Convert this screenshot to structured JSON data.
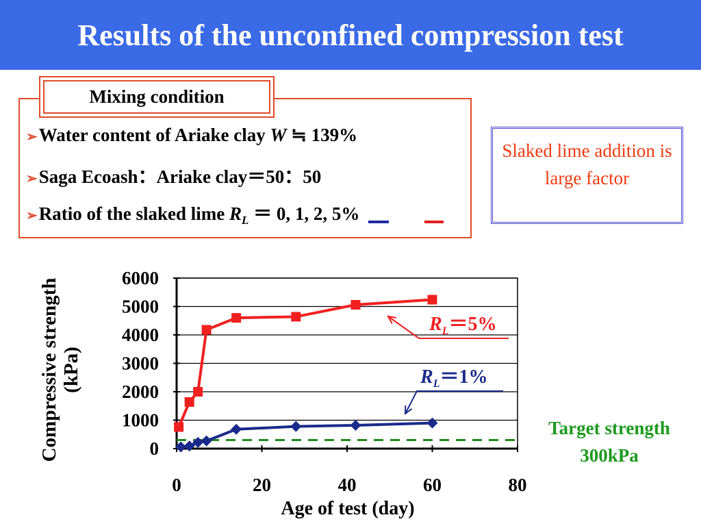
{
  "slide": {
    "title": "Results of the unconfined compression test",
    "mixing_label": "Mixing condition",
    "bullets": {
      "b1_text": "Water content of Ariake clay ",
      "b1_var": "W",
      "b1_value": " ≒ 139%",
      "b2_text": "Saga Ecoash：Ariake clay＝50：50",
      "b3_text": "Ratio of the slaked lime ",
      "b3_var": "R",
      "b3_sub": "L",
      "b3_values": " ＝ 0,  1,  2,  5%"
    },
    "side_note": "Slaked lime addition is large factor",
    "target_note_line1": "Target strength",
    "target_note_line2": "300kPa"
  },
  "colors": {
    "title_bg": "#3b6ae6",
    "series_rl5": "#f02020",
    "series_rl1": "#1a2a8a",
    "target_line": "#1d8a1d",
    "accent_red": "#e04a2a"
  },
  "chart_data": {
    "type": "line",
    "xlabel": "Age of test (day)",
    "ylabel": "Compressive strength (kPa)",
    "xlim": [
      0,
      80
    ],
    "ylim": [
      0,
      6000
    ],
    "x_ticks": [
      "0",
      "20",
      "40",
      "60",
      "80"
    ],
    "y_ticks": [
      "0",
      "1000",
      "2000",
      "3000",
      "4000",
      "5000",
      "6000"
    ],
    "grid": "horizontal",
    "series": [
      {
        "name_var": "R",
        "name_sub": "L",
        "name_value": "＝5%",
        "marker": "square",
        "x": [
          0.5,
          3,
          5,
          7,
          14,
          28,
          42,
          60
        ],
        "y": [
          760,
          1640,
          2000,
          4180,
          4600,
          4640,
          5060,
          5240
        ]
      },
      {
        "name_var": "R",
        "name_sub": "L",
        "name_value": "＝1%",
        "marker": "diamond",
        "x": [
          1,
          3,
          5,
          7,
          14,
          28,
          42,
          60
        ],
        "y": [
          60,
          90,
          220,
          270,
          680,
          780,
          820,
          900
        ]
      }
    ],
    "reference_line": {
      "y": 300,
      "style": "dashed"
    }
  }
}
